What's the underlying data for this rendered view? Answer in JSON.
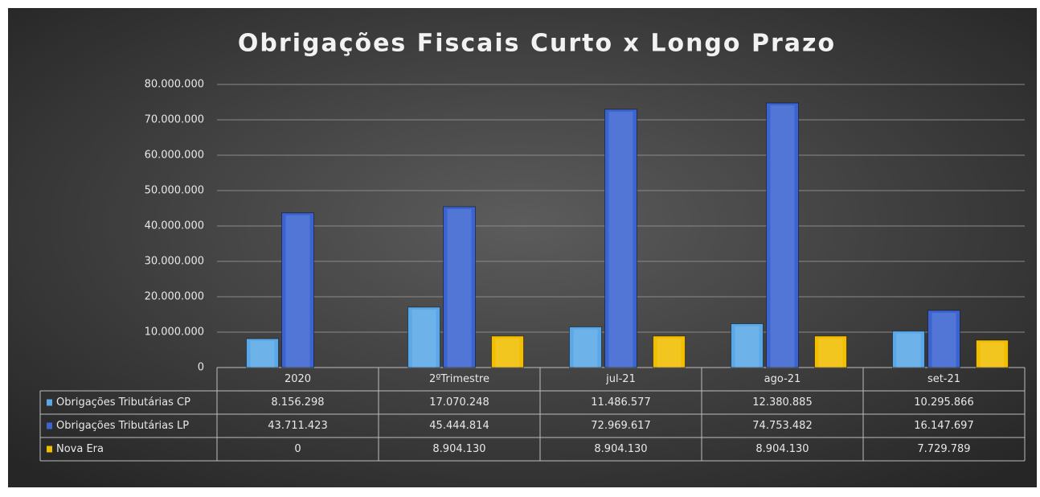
{
  "chart_data": {
    "type": "bar",
    "title": "Obrigações Fiscais Curto x Longo Prazo",
    "categories": [
      "2020",
      "2ºTrimestre",
      "jul-21",
      "ago-21",
      "set-21"
    ],
    "series": [
      {
        "name": "Obrigações Tributárias CP",
        "color": "#5aa8e8",
        "values": [
          8156298,
          17070248,
          11486577,
          12380885,
          10295866
        ],
        "value_labels": [
          "8.156.298",
          "17.070.248",
          "11.486.577",
          "12.380.885",
          "10.295.866"
        ]
      },
      {
        "name": "Obrigações Tributárias LP",
        "color": "#3b64d0",
        "values": [
          43711423,
          45444814,
          72969617,
          74753482,
          16147697
        ],
        "value_labels": [
          "43.711.423",
          "45.444.814",
          "72.969.617",
          "74.753.482",
          "16.147.697"
        ]
      },
      {
        "name": "Nova Era",
        "color": "#f2be00",
        "values": [
          0,
          8904130,
          8904130,
          8904130,
          7729789
        ],
        "value_labels": [
          "0",
          "8.904.130",
          "8.904.130",
          "8.904.130",
          "7.729.789"
        ]
      }
    ],
    "ylim": [
      0,
      80000000
    ],
    "yticks": [
      0,
      {
        "value": 10000000,
        "label": "10.000.000"
      },
      {
        "value": 20000000,
        "label": "20.000.000"
      },
      {
        "value": 30000000,
        "label": "30.000.000"
      },
      {
        "value": 40000000,
        "label": "40.000.000"
      },
      {
        "value": 50000000,
        "label": "50.000.000"
      },
      {
        "value": 60000000,
        "label": "60.000.000"
      },
      {
        "value": 70000000,
        "label": "70.000.000"
      },
      {
        "value": 80000000,
        "label": "80.000.000"
      }
    ],
    "grid": true
  }
}
